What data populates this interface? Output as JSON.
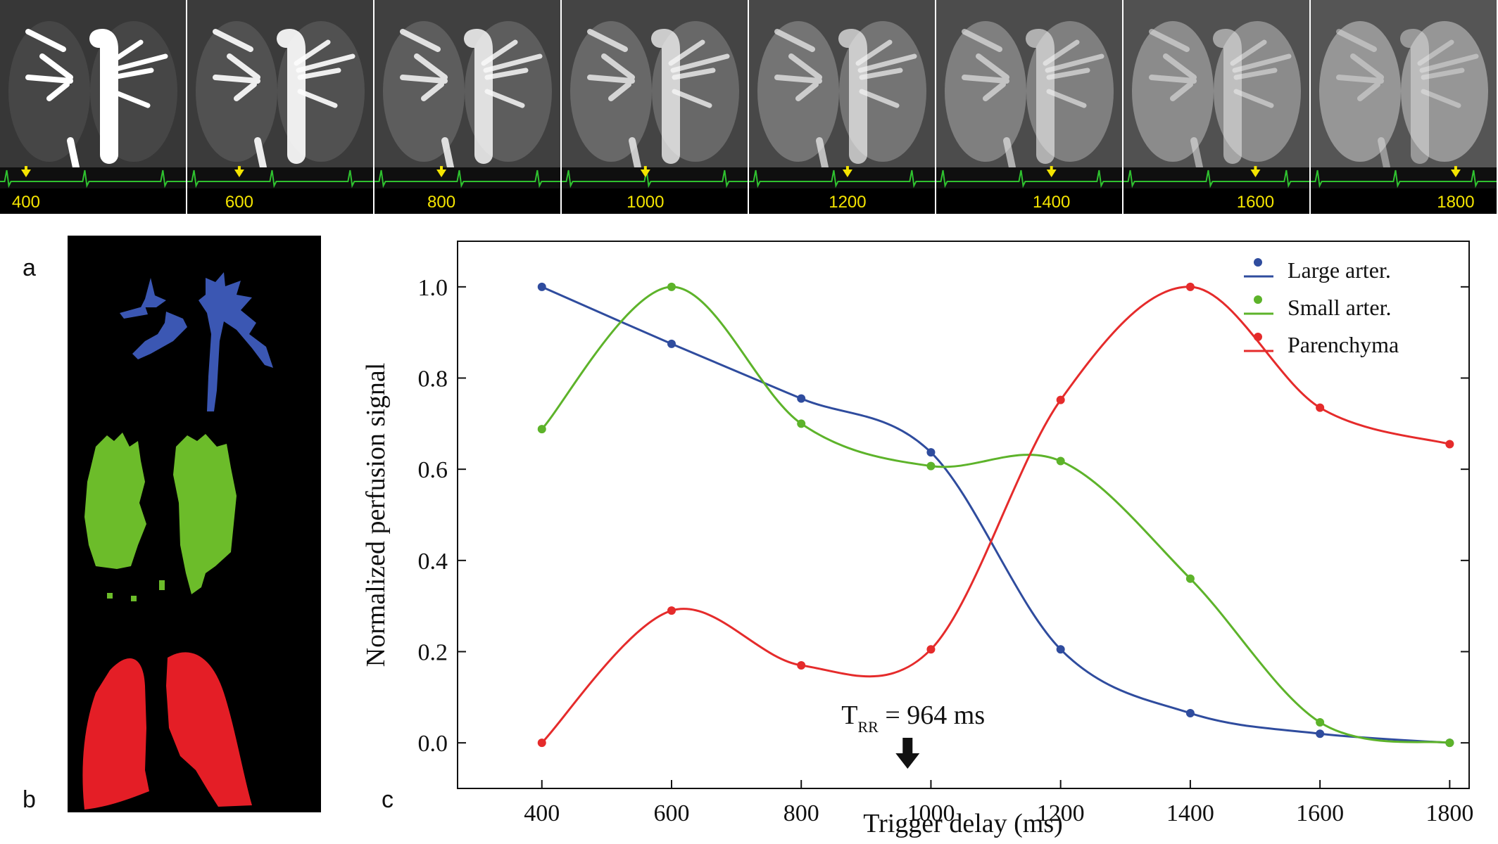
{
  "strip": {
    "frames": [
      {
        "label": "400",
        "arrow_fraction": 0.14
      },
      {
        "label": "600",
        "arrow_fraction": 0.28
      },
      {
        "label": "800",
        "arrow_fraction": 0.36
      },
      {
        "label": "1000",
        "arrow_fraction": 0.45
      },
      {
        "label": "1200",
        "arrow_fraction": 0.53
      },
      {
        "label": "1400",
        "arrow_fraction": 0.62
      },
      {
        "label": "1600",
        "arrow_fraction": 0.71
      },
      {
        "label": "1800",
        "arrow_fraction": 0.78
      }
    ],
    "ecg_color": "#2fc12f",
    "label_color": "#f4e400"
  },
  "panels": {
    "a": "a",
    "b": "b",
    "c": "c"
  },
  "maps": {
    "large_color": "#3b57b3",
    "small_color": "#6cbc2a",
    "parenchyma_color": "#e41e26"
  },
  "chart_data": {
    "type": "line",
    "xlabel": "Trigger delay (ms)",
    "ylabel": "Normalized perfusion signal",
    "xlim": [
      270,
      1830
    ],
    "ylim": [
      -0.1,
      1.1
    ],
    "xticks": [
      400,
      600,
      800,
      1000,
      1200,
      1400,
      1600,
      1800
    ],
    "yticks": [
      0.0,
      0.2,
      0.4,
      0.6,
      0.8,
      1.0
    ],
    "ytick_labels": [
      "0.0",
      "0.2",
      "0.4",
      "0.6",
      "0.8",
      "1.0"
    ],
    "legend_position": "top-right",
    "series": [
      {
        "name": "Large arter.",
        "color": "#2f4c9e",
        "x": [
          400,
          600,
          800,
          1000,
          1200,
          1400,
          1600,
          1800
        ],
        "values": [
          1.0,
          0.875,
          0.755,
          0.637,
          0.205,
          0.065,
          0.02,
          0.0
        ]
      },
      {
        "name": "Small arter.",
        "color": "#5db32a",
        "x": [
          400,
          600,
          800,
          1000,
          1200,
          1400,
          1600,
          1800
        ],
        "values": [
          0.688,
          1.0,
          0.7,
          0.607,
          0.618,
          0.36,
          0.045,
          0.0
        ]
      },
      {
        "name": "Parenchyma",
        "color": "#e52b2b",
        "x": [
          400,
          600,
          800,
          1000,
          1200,
          1400,
          1600,
          1800
        ],
        "values": [
          0.0,
          0.29,
          0.17,
          0.205,
          0.752,
          1.0,
          0.735,
          0.655
        ]
      }
    ],
    "annotation": {
      "text_main": "T",
      "text_sub": "RR",
      "text_rest": " = 964 ms",
      "x": 964
    }
  }
}
